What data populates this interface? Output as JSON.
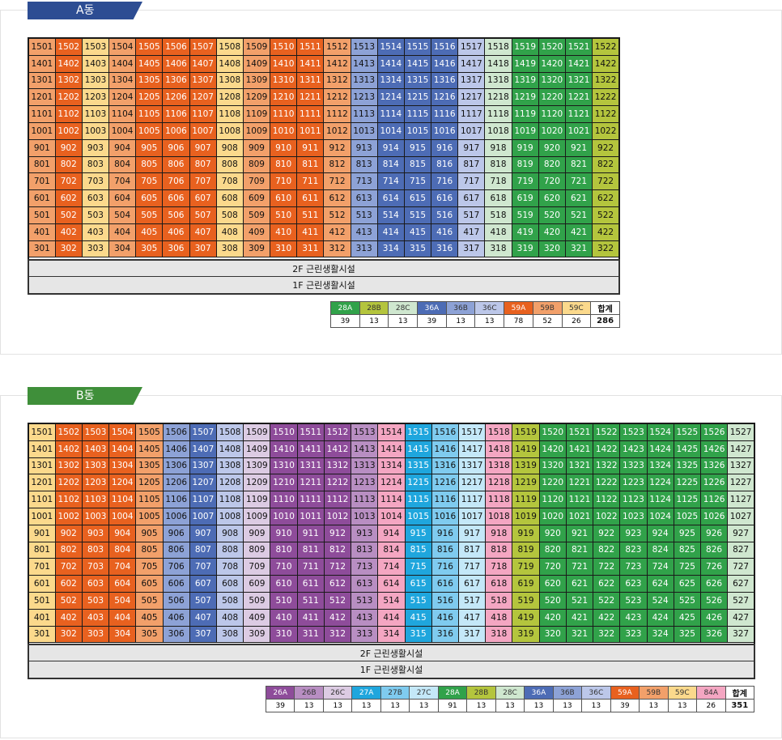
{
  "buildings": [
    {
      "name": "A동",
      "floors": [
        15,
        14,
        13,
        12,
        11,
        10,
        9,
        8,
        7,
        6,
        5,
        4,
        3
      ],
      "columns": [
        {
          "unit": 1,
          "type": "59B"
        },
        {
          "unit": 2,
          "type": "59A"
        },
        {
          "unit": 3,
          "type": "59C"
        },
        {
          "unit": 4,
          "type": "59B"
        },
        {
          "unit": 5,
          "type": "59A"
        },
        {
          "unit": 6,
          "type": "59A"
        },
        {
          "unit": 7,
          "type": "59A"
        },
        {
          "unit": 8,
          "type": "59C"
        },
        {
          "unit": 9,
          "type": "59B"
        },
        {
          "unit": 10,
          "type": "59A"
        },
        {
          "unit": 11,
          "type": "59A"
        },
        {
          "unit": 12,
          "type": "59B"
        },
        {
          "unit": 13,
          "type": "36B"
        },
        {
          "unit": 14,
          "type": "36A"
        },
        {
          "unit": 15,
          "type": "36A"
        },
        {
          "unit": 16,
          "type": "36A"
        },
        {
          "unit": 17,
          "type": "36C"
        },
        {
          "unit": 18,
          "type": "28C"
        },
        {
          "unit": 19,
          "type": "28A"
        },
        {
          "unit": 20,
          "type": "28A"
        },
        {
          "unit": 21,
          "type": "28A"
        },
        {
          "unit": 22,
          "type": "28B"
        }
      ],
      "lower_floors": [
        "2F  근린생활시설",
        "1F  근린생활시설"
      ],
      "legend": [
        {
          "type": "28A",
          "count": "39"
        },
        {
          "type": "28B",
          "count": "13"
        },
        {
          "type": "28C",
          "count": "13"
        },
        {
          "type": "36A",
          "count": "39"
        },
        {
          "type": "36B",
          "count": "13"
        },
        {
          "type": "36C",
          "count": "13"
        },
        {
          "type": "59A",
          "count": "78"
        },
        {
          "type": "59B",
          "count": "52"
        },
        {
          "type": "59C",
          "count": "26"
        }
      ],
      "total_label": "합계",
      "total": "286"
    },
    {
      "name": "B동",
      "floors": [
        15,
        14,
        13,
        12,
        11,
        10,
        9,
        8,
        7,
        6,
        5,
        4,
        3
      ],
      "columns": [
        {
          "unit": 1,
          "type": "59C"
        },
        {
          "unit": 2,
          "type": "59A"
        },
        {
          "unit": 3,
          "type": "59A"
        },
        {
          "unit": 4,
          "type": "59A"
        },
        {
          "unit": 5,
          "type": "59B"
        },
        {
          "unit": 6,
          "type": "36B"
        },
        {
          "unit": 7,
          "type": "36A"
        },
        {
          "unit": 8,
          "type": "36C"
        },
        {
          "unit": 9,
          "type": "26C"
        },
        {
          "unit": 10,
          "type": "26A"
        },
        {
          "unit": 11,
          "type": "26A"
        },
        {
          "unit": 12,
          "type": "26A"
        },
        {
          "unit": 13,
          "type": "26B"
        },
        {
          "unit": 14,
          "type": "84A"
        },
        {
          "unit": 15,
          "type": "27A"
        },
        {
          "unit": 16,
          "type": "27B"
        },
        {
          "unit": 17,
          "type": "27C"
        },
        {
          "unit": 18,
          "type": "84A"
        },
        {
          "unit": 19,
          "type": "28B"
        },
        {
          "unit": 20,
          "type": "28A"
        },
        {
          "unit": 21,
          "type": "28A"
        },
        {
          "unit": 22,
          "type": "28A"
        },
        {
          "unit": 23,
          "type": "28A"
        },
        {
          "unit": 24,
          "type": "28A"
        },
        {
          "unit": 25,
          "type": "28A"
        },
        {
          "unit": 26,
          "type": "28A"
        },
        {
          "unit": 27,
          "type": "28C"
        }
      ],
      "lower_floors": [
        "2F  근린생활시설",
        "1F  근린생활시설"
      ],
      "legend": [
        {
          "type": "26A",
          "count": "39"
        },
        {
          "type": "26B",
          "count": "13"
        },
        {
          "type": "26C",
          "count": "13"
        },
        {
          "type": "27A",
          "count": "13"
        },
        {
          "type": "27B",
          "count": "13"
        },
        {
          "type": "27C",
          "count": "13"
        },
        {
          "type": "28A",
          "count": "91"
        },
        {
          "type": "28B",
          "count": "13"
        },
        {
          "type": "28C",
          "count": "13"
        },
        {
          "type": "36A",
          "count": "13"
        },
        {
          "type": "36B",
          "count": "13"
        },
        {
          "type": "36C",
          "count": "13"
        },
        {
          "type": "59A",
          "count": "39"
        },
        {
          "type": "59B",
          "count": "13"
        },
        {
          "type": "59C",
          "count": "13"
        },
        {
          "type": "84A",
          "count": "26"
        }
      ],
      "total_label": "합계",
      "total": "351"
    }
  ],
  "type_colors": {
    "59A": "#e8611f",
    "59B": "#f2a06a",
    "59C": "#fbd98c",
    "36A": "#4d6cb5",
    "36B": "#8da2d6",
    "36C": "#bcc7e9",
    "28A": "#31a24a",
    "28B": "#b4c53d",
    "28C": "#cfe7cf",
    "26A": "#8e4c9a",
    "26B": "#b88ec2",
    "26C": "#dccbe3",
    "27A": "#1fa6dd",
    "27B": "#7fcbef",
    "27C": "#c4e8f8",
    "84A": "#f4a6c2"
  },
  "type_text_colors": {
    "59A": "#ffffff",
    "36A": "#ffffff",
    "28A": "#ffffff",
    "26A": "#ffffff",
    "27A": "#ffffff"
  }
}
